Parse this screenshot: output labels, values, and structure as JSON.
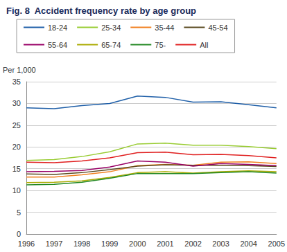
{
  "chart_data": {
    "type": "line",
    "title": "Fig. 8  Accident frequency rate by age group",
    "y_label": "Per 1,000",
    "categories": [
      "1996",
      "1997",
      "1998",
      "1999",
      "2000",
      "2001",
      "2002",
      "2003",
      "2004",
      "2005"
    ],
    "series": [
      {
        "name": "18-24",
        "color": "#1f5fa8",
        "values": [
          29.0,
          28.8,
          29.5,
          30.0,
          31.7,
          31.4,
          30.3,
          30.4,
          29.7,
          29.0
        ]
      },
      {
        "name": "25-34",
        "color": "#99cc33",
        "values": [
          16.9,
          17.1,
          17.8,
          18.9,
          20.7,
          20.9,
          20.4,
          20.4,
          20.1,
          19.6
        ]
      },
      {
        "name": "35-44",
        "color": "#f08020",
        "values": [
          13.1,
          13.1,
          13.6,
          14.3,
          15.7,
          16.0,
          15.8,
          16.5,
          16.6,
          16.2
        ]
      },
      {
        "name": "45-54",
        "color": "#5a4a20",
        "values": [
          13.8,
          13.7,
          14.1,
          14.8,
          15.6,
          15.9,
          15.8,
          15.8,
          15.7,
          15.5
        ]
      },
      {
        "name": "55-64",
        "color": "#990066",
        "values": [
          14.3,
          14.4,
          14.6,
          15.4,
          16.8,
          16.5,
          15.6,
          16.2,
          16.0,
          15.7
        ]
      },
      {
        "name": "65-74",
        "color": "#aaaa00",
        "values": [
          11.8,
          11.9,
          12.2,
          13.0,
          14.1,
          14.3,
          14.0,
          14.3,
          14.5,
          14.3
        ]
      },
      {
        "name": "75-",
        "color": "#228822",
        "values": [
          11.3,
          11.4,
          11.9,
          12.8,
          13.9,
          13.9,
          13.9,
          14.1,
          14.3,
          14.0
        ]
      },
      {
        "name": "All",
        "color": "#e02020",
        "values": [
          16.5,
          16.4,
          16.8,
          17.5,
          18.7,
          18.8,
          18.2,
          18.3,
          18.0,
          17.5
        ]
      }
    ],
    "ylim": [
      0,
      35
    ],
    "yticks": [
      0,
      5,
      10,
      15,
      20,
      25,
      30,
      35
    ],
    "grid": true,
    "legend": "top"
  }
}
